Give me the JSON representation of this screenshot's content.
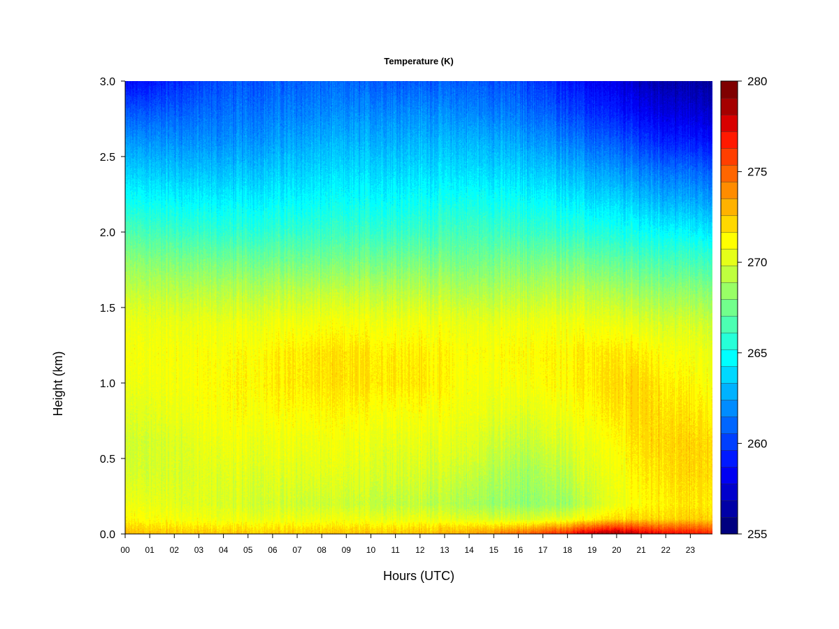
{
  "chart_data": {
    "type": "heatmap",
    "title": "Temperature (K)",
    "xlabel": "Hours (UTC)",
    "ylabel": "Height (km)",
    "x_ticks": [
      "00",
      "01",
      "02",
      "03",
      "04",
      "05",
      "06",
      "07",
      "08",
      "09",
      "10",
      "11",
      "12",
      "13",
      "14",
      "15",
      "16",
      "17",
      "18",
      "19",
      "20",
      "21",
      "22",
      "23"
    ],
    "xlim": [
      0,
      23.9
    ],
    "y_ticks": [
      "0.0",
      "0.5",
      "1.0",
      "1.5",
      "2.0",
      "2.5",
      "3.0"
    ],
    "ylim": [
      0,
      3.0
    ],
    "colorbar": {
      "min": 255,
      "max": 280,
      "ticks": [
        "255",
        "260",
        "265",
        "270",
        "275",
        "280"
      ],
      "levels": 25,
      "colors": [
        "#00007f",
        "#0000a6",
        "#0000cc",
        "#0000f2",
        "#0019ff",
        "#003fff",
        "#0066ff",
        "#008cff",
        "#00b2ff",
        "#00d8ff",
        "#00ffff",
        "#26ffd8",
        "#4cffb2",
        "#72ff8c",
        "#99ff66",
        "#bfff3f",
        "#e5ff19",
        "#ffff00",
        "#ffd800",
        "#ffb200",
        "#ff8c00",
        "#ff6600",
        "#ff3f00",
        "#ff1900",
        "#d80000",
        "#a50000",
        "#7f0000"
      ]
    },
    "grid": false,
    "profile_height_km": [
      0.0,
      0.05,
      0.1,
      0.2,
      0.4,
      0.6,
      0.8,
      1.0,
      1.2,
      1.4,
      1.6,
      1.8,
      2.0,
      2.2,
      2.4,
      2.6,
      2.8,
      3.0
    ],
    "profile_hours": [
      0,
      4,
      8,
      12,
      14,
      16,
      18,
      19,
      20,
      21,
      22,
      23.9
    ],
    "temperature_K": [
      [
        272.8,
        272.0,
        271.2,
        270.6,
        269.8,
        269.6,
        270.0,
        270.5,
        270.8,
        270.5,
        269.5,
        268.2,
        266.6,
        265.0,
        263.6,
        262.2,
        260.5,
        258.5
      ],
      [
        272.6,
        271.6,
        270.6,
        270.0,
        270.2,
        270.6,
        271.0,
        271.2,
        271.0,
        270.5,
        269.2,
        267.6,
        265.8,
        264.5,
        263.2,
        262.0,
        261.2,
        260.5
      ],
      [
        272.6,
        271.6,
        270.6,
        269.6,
        270.2,
        270.6,
        271.2,
        271.8,
        271.8,
        270.8,
        269.4,
        267.6,
        266.0,
        264.8,
        263.8,
        262.8,
        261.8,
        261.0
      ],
      [
        272.8,
        271.8,
        270.6,
        269.4,
        270.0,
        270.4,
        271.0,
        271.8,
        271.6,
        270.8,
        269.4,
        267.8,
        266.2,
        265.0,
        264.0,
        263.0,
        262.0,
        260.8
      ],
      [
        273.4,
        272.0,
        270.2,
        268.8,
        269.6,
        270.2,
        270.6,
        270.8,
        271.0,
        270.4,
        269.0,
        267.6,
        266.4,
        265.2,
        264.0,
        263.0,
        261.8,
        260.8
      ],
      [
        275.0,
        272.4,
        270.0,
        268.2,
        268.6,
        269.4,
        270.2,
        270.8,
        271.2,
        270.6,
        269.2,
        267.8,
        266.2,
        265.0,
        263.8,
        262.6,
        261.4,
        260.4
      ],
      [
        277.0,
        273.8,
        270.6,
        268.6,
        269.4,
        270.2,
        270.8,
        271.4,
        271.4,
        270.8,
        269.4,
        267.8,
        266.0,
        264.6,
        263.2,
        261.8,
        260.4,
        259.2
      ],
      [
        278.6,
        275.0,
        271.4,
        269.6,
        270.2,
        270.6,
        271.2,
        271.6,
        271.6,
        270.6,
        269.2,
        267.4,
        265.6,
        264.0,
        262.6,
        261.0,
        259.6,
        258.4
      ],
      [
        279.0,
        275.6,
        272.0,
        270.4,
        270.6,
        271.0,
        271.6,
        272.0,
        271.6,
        270.4,
        268.8,
        267.0,
        265.2,
        263.8,
        262.2,
        260.6,
        259.0,
        257.8
      ],
      [
        278.2,
        275.2,
        272.2,
        271.2,
        271.6,
        272.0,
        272.2,
        272.2,
        271.6,
        270.2,
        268.6,
        266.8,
        265.0,
        263.4,
        261.8,
        260.0,
        258.4,
        257.0
      ],
      [
        277.6,
        274.8,
        272.2,
        271.6,
        272.0,
        272.2,
        272.0,
        271.6,
        271.0,
        270.0,
        268.4,
        266.6,
        264.8,
        263.0,
        261.4,
        259.4,
        257.8,
        256.6
      ],
      [
        276.8,
        274.6,
        272.4,
        271.8,
        272.2,
        272.2,
        271.6,
        271.0,
        270.6,
        269.8,
        268.2,
        266.4,
        264.4,
        262.6,
        261.0,
        259.0,
        257.4,
        256.2
      ]
    ]
  }
}
